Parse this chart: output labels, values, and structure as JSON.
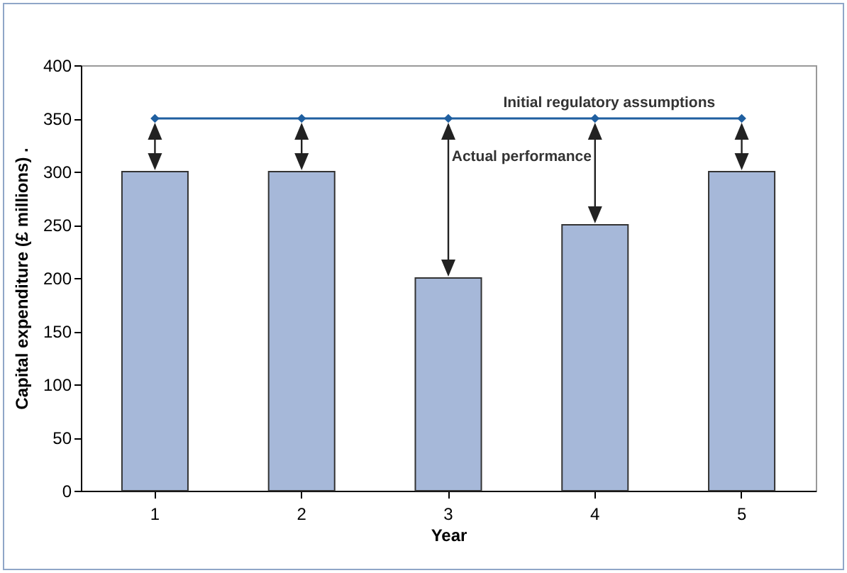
{
  "chart_data": {
    "type": "bar",
    "xlabel": "Year",
    "ylabel": "Capital expenditure (£ millions) .",
    "categories": [
      "1",
      "2",
      "3",
      "4",
      "5"
    ],
    "series": [
      {
        "color": "#a6b8d9",
        "values": [
          300,
          300,
          200,
          250,
          300
        ]
      },
      {
        "type": "line",
        "color": "#1f5fa0",
        "marker": "diamond",
        "values": [
          350,
          350,
          350,
          350,
          350
        ]
      }
    ],
    "ylim": [
      0,
      400
    ],
    "yticks": [
      0,
      50,
      100,
      150,
      200,
      250,
      300,
      350,
      400
    ],
    "grid": false,
    "annotations": [
      "Initial regulatory assumptions",
      "Actual performance"
    ]
  }
}
